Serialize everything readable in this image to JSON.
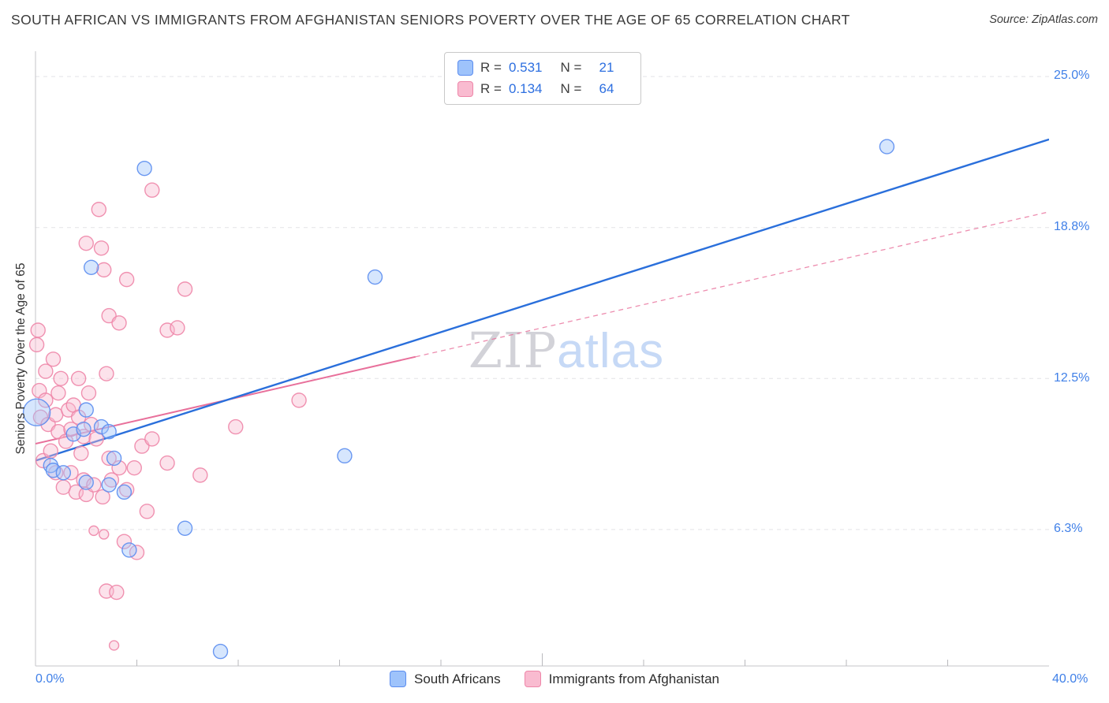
{
  "header": {
    "title": "SOUTH AFRICAN VS IMMIGRANTS FROM AFGHANISTAN SENIORS POVERTY OVER THE AGE OF 65 CORRELATION CHART",
    "source": "Source: ZipAtlas.com"
  },
  "legend_box": {
    "rows": [
      {
        "r_label": "R =",
        "r_value": "0.531",
        "n_label": "N =",
        "n_value": "21"
      },
      {
        "r_label": "R =",
        "r_value": "0.134",
        "n_label": "N =",
        "n_value": "64"
      }
    ]
  },
  "watermark": {
    "zip": "ZIP",
    "atlas": "atlas"
  },
  "axes": {
    "y_label": "Seniors Poverty Over the Age of 65",
    "y_ticks": [
      {
        "label": "25.0%",
        "value": 25.0
      },
      {
        "label": "18.8%",
        "value": 18.75
      },
      {
        "label": "12.5%",
        "value": 12.5
      },
      {
        "label": "6.3%",
        "value": 6.25
      }
    ],
    "x_tick_labels": [
      {
        "label": "0.0%",
        "value": 0
      },
      {
        "label": "40.0%",
        "value": 40
      }
    ],
    "x_minor_ticks": [
      4,
      8,
      12,
      16,
      20,
      24,
      28,
      32,
      36
    ]
  },
  "bottom_legend": [
    {
      "label": "South Africans"
    },
    {
      "label": "Immigrants from Afghanistan"
    }
  ],
  "colors": {
    "axis_text": "#4080e8",
    "grid": "#e3e3e6",
    "axis_line": "#c6c6ca",
    "tick_mark": "#b9b9bd",
    "title_text": "#3a3a3a",
    "watermark_zip": "#d2d2d8",
    "watermark_atlas": "#c6d9f6"
  },
  "chart_data": {
    "type": "scatter",
    "title": "SOUTH AFRICAN VS IMMIGRANTS FROM AFGHANISTAN SENIORS POVERTY OVER THE AGE OF 65 CORRELATION CHART",
    "xlabel": "",
    "ylabel": "Seniors Poverty Over the Age of 65",
    "x_unit": "%",
    "y_unit": "%",
    "xlim": [
      0,
      40
    ],
    "ylim": [
      0.6,
      26.05
    ],
    "grid": true,
    "legend_position": "bottom-center",
    "series": [
      {
        "name": "South Africans",
        "id": "south-africans",
        "R": 0.531,
        "N": 21,
        "fill": "#9ec3fb",
        "stroke": "#5b8def",
        "points": [
          [
            0.05,
            11.1,
            17
          ],
          [
            0.6,
            8.9
          ],
          [
            0.7,
            8.7
          ],
          [
            1.1,
            8.6
          ],
          [
            1.5,
            10.2
          ],
          [
            1.9,
            10.4
          ],
          [
            2.0,
            11.2
          ],
          [
            2.2,
            17.1
          ],
          [
            2.6,
            10.5
          ],
          [
            2.9,
            10.3
          ],
          [
            2.0,
            8.2
          ],
          [
            2.9,
            8.1
          ],
          [
            3.1,
            9.2
          ],
          [
            3.5,
            7.8
          ],
          [
            3.7,
            5.4
          ],
          [
            4.3,
            21.2
          ],
          [
            5.9,
            6.3
          ],
          [
            7.3,
            1.2
          ],
          [
            12.2,
            9.3
          ],
          [
            13.4,
            16.7
          ],
          [
            33.6,
            22.1
          ]
        ],
        "trend": {
          "start": [
            0,
            9.1
          ],
          "end": [
            40,
            22.4
          ],
          "style": "solid",
          "color": "#2a6fdb"
        }
      },
      {
        "name": "Immigrants from Afghanistan",
        "id": "afghanistan-immigrants",
        "R": 0.134,
        "N": 64,
        "fill": "#f9bbd0",
        "stroke": "#ee86a9",
        "points": [
          [
            0.05,
            13.9
          ],
          [
            0.1,
            14.5
          ],
          [
            0.15,
            12.0
          ],
          [
            0.2,
            10.9
          ],
          [
            0.3,
            9.1
          ],
          [
            0.4,
            11.6
          ],
          [
            0.4,
            12.8
          ],
          [
            0.5,
            10.6
          ],
          [
            0.6,
            9.5
          ],
          [
            0.7,
            13.3
          ],
          [
            0.8,
            11.0
          ],
          [
            0.8,
            8.6
          ],
          [
            0.9,
            10.3
          ],
          [
            0.9,
            11.9
          ],
          [
            1.0,
            12.5
          ],
          [
            1.1,
            8.0
          ],
          [
            1.2,
            9.9
          ],
          [
            1.3,
            11.2
          ],
          [
            1.4,
            10.4
          ],
          [
            1.4,
            8.6
          ],
          [
            1.5,
            11.4
          ],
          [
            1.6,
            7.8
          ],
          [
            1.7,
            10.9
          ],
          [
            1.7,
            12.5
          ],
          [
            1.8,
            9.4
          ],
          [
            1.9,
            10.1
          ],
          [
            1.9,
            8.3
          ],
          [
            2.0,
            18.1
          ],
          [
            2.0,
            7.7
          ],
          [
            2.1,
            11.9
          ],
          [
            2.2,
            10.6
          ],
          [
            2.3,
            8.1
          ],
          [
            2.3,
            6.2,
            6
          ],
          [
            2.4,
            10.0
          ],
          [
            2.5,
            19.5
          ],
          [
            2.6,
            17.9
          ],
          [
            2.65,
            7.6
          ],
          [
            2.7,
            17.0
          ],
          [
            2.7,
            6.05,
            6
          ],
          [
            2.8,
            12.7
          ],
          [
            2.8,
            3.7
          ],
          [
            2.9,
            15.1
          ],
          [
            2.9,
            9.2
          ],
          [
            3.0,
            8.3
          ],
          [
            3.1,
            1.45,
            6
          ],
          [
            3.2,
            3.65
          ],
          [
            3.3,
            14.8
          ],
          [
            3.3,
            8.8
          ],
          [
            3.5,
            5.75
          ],
          [
            3.6,
            16.6
          ],
          [
            3.6,
            7.9
          ],
          [
            3.9,
            8.8
          ],
          [
            4.0,
            5.3
          ],
          [
            4.2,
            9.7
          ],
          [
            4.4,
            7.0
          ],
          [
            4.6,
            20.3
          ],
          [
            4.6,
            10.0
          ],
          [
            5.2,
            14.5
          ],
          [
            5.2,
            9.0
          ],
          [
            5.6,
            14.6
          ],
          [
            5.9,
            16.2
          ],
          [
            6.5,
            8.5
          ],
          [
            7.9,
            10.5
          ],
          [
            10.4,
            11.6
          ]
        ],
        "trend": {
          "start": [
            0,
            9.8
          ],
          "end": [
            40,
            19.4
          ],
          "style": "solid-then-dashed",
          "solid_until_x": 15,
          "color": "#e8709b"
        }
      }
    ]
  }
}
